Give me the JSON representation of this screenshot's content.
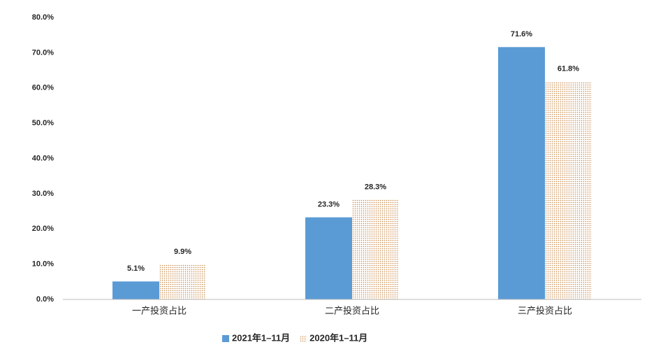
{
  "chart_data": {
    "type": "bar",
    "categories": [
      "一产投资占比",
      "二产投资占比",
      "三产投资占比"
    ],
    "series": [
      {
        "name": "2021年1–11月",
        "color": "#5b9bd5",
        "values": [
          5.1,
          23.3,
          71.6
        ],
        "value_labels": [
          "5.1%",
          "23.3%",
          "71.6%"
        ]
      },
      {
        "name": "2020年1–11月",
        "color": "#c98a4b",
        "pattern": "dots",
        "values": [
          9.9,
          28.3,
          61.8
        ],
        "value_labels": [
          "9.9%",
          "28.3%",
          "61.8%"
        ]
      }
    ],
    "ylim": [
      0,
      80
    ],
    "yticks": [
      {
        "value": 0,
        "label": "0.0%"
      },
      {
        "value": 10,
        "label": "10.0%"
      },
      {
        "value": 20,
        "label": "20.0%"
      },
      {
        "value": 30,
        "label": "30.0%"
      },
      {
        "value": 40,
        "label": "40.0%"
      },
      {
        "value": 50,
        "label": "50.0%"
      },
      {
        "value": 60,
        "label": "60.0%"
      },
      {
        "value": 70,
        "label": "70.0%"
      },
      {
        "value": 80,
        "label": "80.0%"
      }
    ],
    "grid": false,
    "legend": "bottom"
  }
}
